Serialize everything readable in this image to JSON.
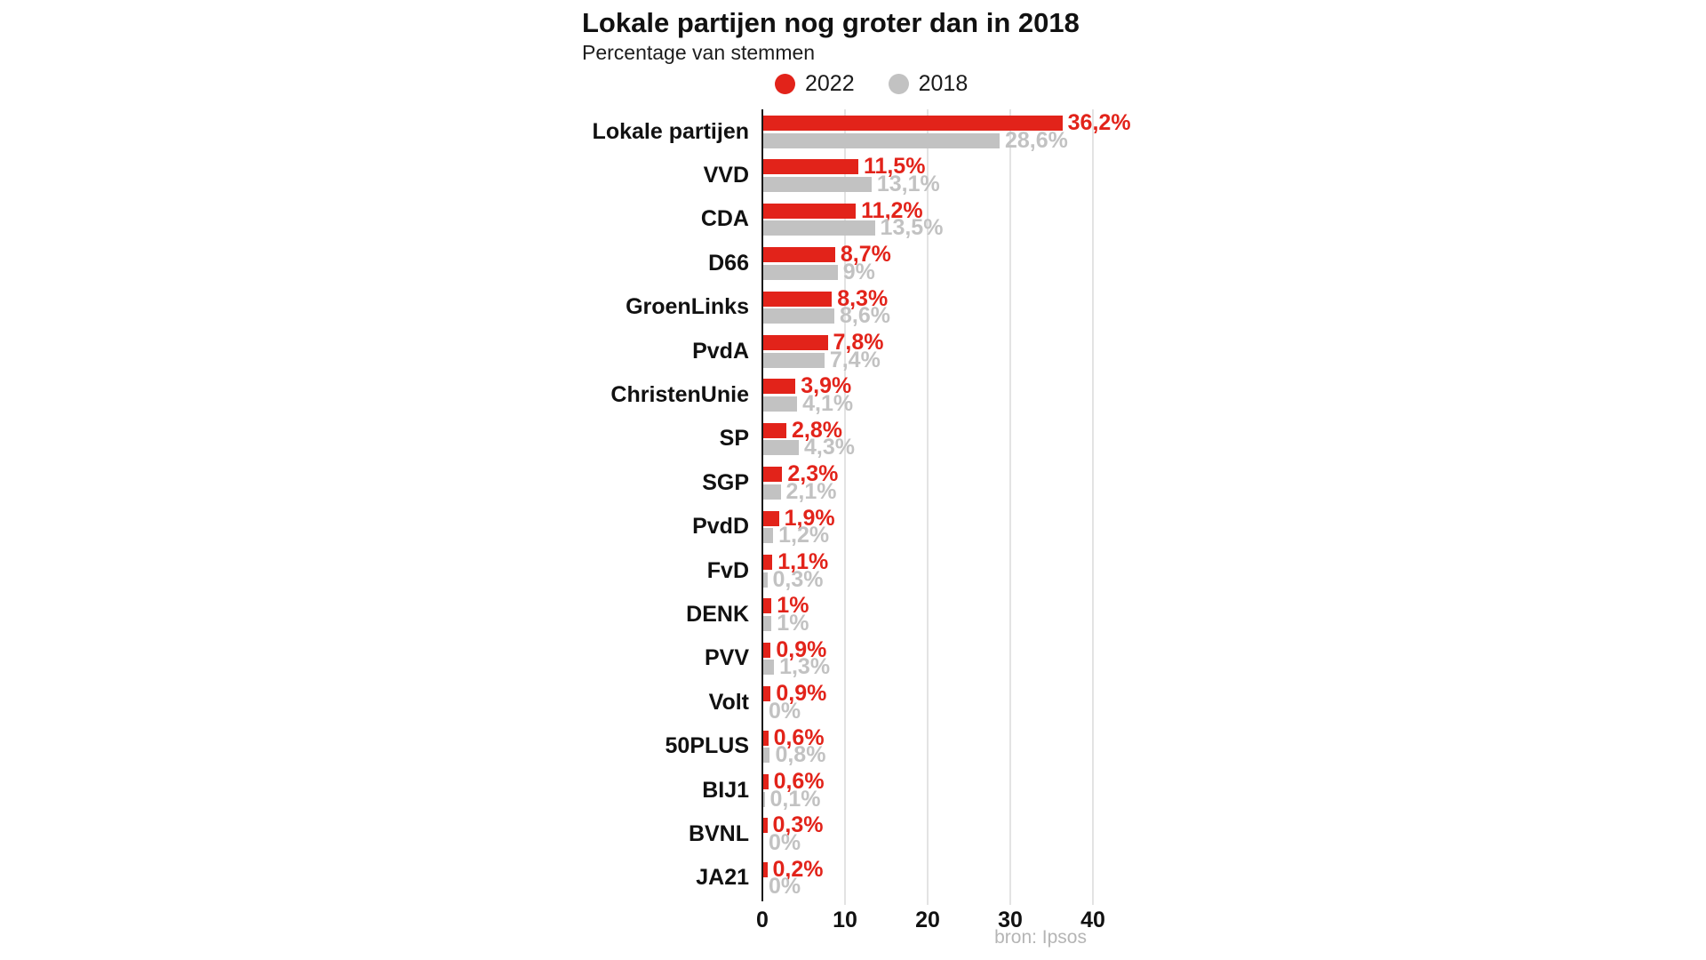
{
  "header": {
    "title": "Lokale partijen nog groter dan in 2018",
    "subtitle": "Percentage van stemmen"
  },
  "legend": [
    {
      "label": "2022",
      "color": "#e2231a"
    },
    {
      "label": "2018",
      "color": "#c2c2c2"
    }
  ],
  "source": "bron: Ipsos",
  "colors": {
    "bar_2022": "#e2231a",
    "bar_2018": "#c2c2c2",
    "value_label_2022": "#e2231a",
    "value_label_2018": "#c2c2c2",
    "gridline": "#e3e3e3",
    "axis": "#1a1a1a"
  },
  "chart_data": {
    "type": "bar",
    "orientation": "horizontal",
    "title": "Lokale partijen nog groter dan in 2018",
    "subtitle": "Percentage van stemmen",
    "xlabel": "",
    "ylabel": "",
    "xlim": [
      0,
      45
    ],
    "x_ticks": [
      0,
      10,
      20,
      30,
      40
    ],
    "grid": true,
    "legend_position": "top",
    "categories": [
      "Lokale partijen",
      "VVD",
      "CDA",
      "D66",
      "GroenLinks",
      "PvdA",
      "ChristenUnie",
      "SP",
      "SGP",
      "PvdD",
      "FvD",
      "DENK",
      "PVV",
      "Volt",
      "50PLUS",
      "BIJ1",
      "BVNL",
      "JA21"
    ],
    "series": [
      {
        "name": "2022",
        "color": "#e2231a",
        "values": [
          36.2,
          11.5,
          11.2,
          8.7,
          8.3,
          7.8,
          3.9,
          2.8,
          2.3,
          1.9,
          1.1,
          1,
          0.9,
          0.9,
          0.6,
          0.6,
          0.3,
          0.2
        ],
        "labels": [
          "36,2%",
          "11,5%",
          "11,2%",
          "8,7%",
          "8,3%",
          "7,8%",
          "3,9%",
          "2,8%",
          "2,3%",
          "1,9%",
          "1,1%",
          "1%",
          "0,9%",
          "0,9%",
          "0,6%",
          "0,6%",
          "0,3%",
          "0,2%"
        ]
      },
      {
        "name": "2018",
        "color": "#c2c2c2",
        "values": [
          28.6,
          13.1,
          13.5,
          9,
          8.6,
          7.4,
          4.1,
          4.3,
          2.1,
          1.2,
          0.3,
          1,
          1.3,
          0,
          0.8,
          0.1,
          0,
          0
        ],
        "labels": [
          "28,6%",
          "13,1%",
          "13,5%",
          "9%",
          "8,6%",
          "7,4%",
          "4,1%",
          "4,3%",
          "2,1%",
          "1,2%",
          "0,3%",
          "1%",
          "1,3%",
          "0%",
          "0,8%",
          "0,1%",
          "0%",
          "0%"
        ]
      }
    ]
  }
}
